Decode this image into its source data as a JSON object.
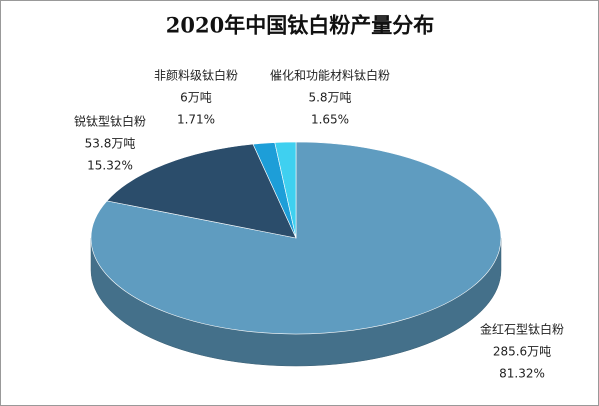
{
  "chart_data": {
    "type": "pie",
    "title": "2020年中国钛白粉产量分布",
    "categories": [
      "金红石型钛白粉",
      "锐钛型钛白粉",
      "非颜料级钛白粉",
      "催化和功能材料钛白粉"
    ],
    "values": [
      81.32,
      15.32,
      1.71,
      1.65
    ],
    "value_labels": [
      "81.32%",
      "15.32%",
      "1.71%",
      "1.65%"
    ],
    "amounts": [
      285.6,
      53.8,
      6,
      5.8
    ],
    "amount_labels": [
      "285.6万吨",
      "53.8万吨",
      "6万吨",
      "5.8万吨"
    ],
    "colors": [
      "#5f9cc0",
      "#2b4d6b",
      "#1d9ed8",
      "#3fd0f0"
    ]
  }
}
